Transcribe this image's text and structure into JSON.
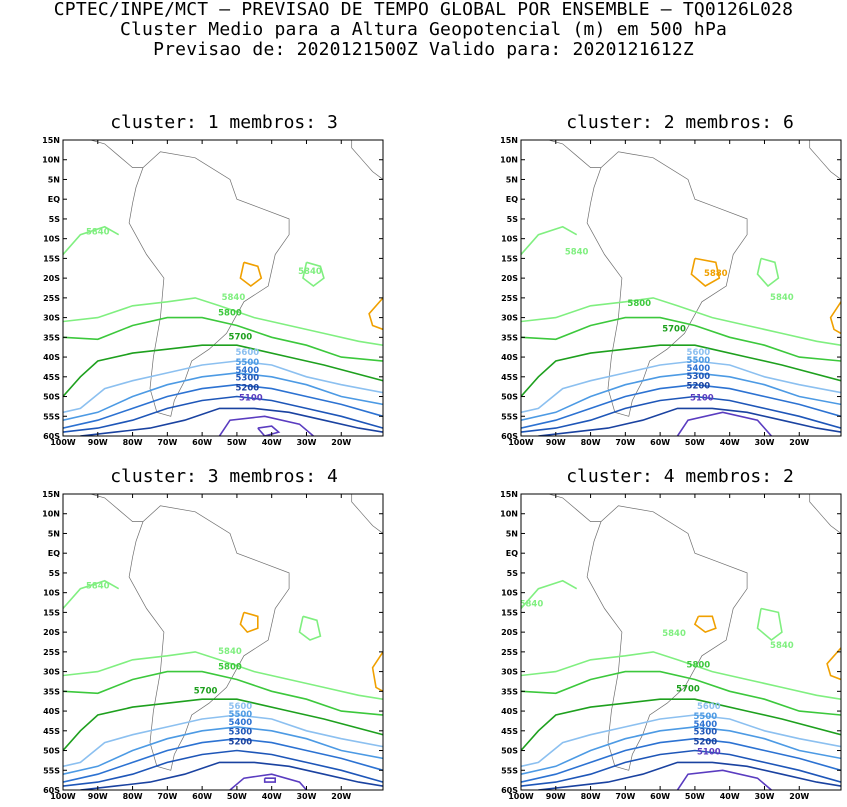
{
  "header": {
    "line1": "CPTEC/INPE/MCT – PREVISAO DE TEMPO GLOBAL POR ENSEMBLE – TQ0126L028",
    "line2": "Cluster Medio para a Altura Geopotencial (m) em 500 hPa",
    "line3": "Previsao de: 2020121500Z    Valido para: 2020121612Z"
  },
  "axes": {
    "lat_ticks": [
      "15N",
      "10N",
      "5N",
      "EQ",
      "5S",
      "10S",
      "15S",
      "20S",
      "25S",
      "30S",
      "35S",
      "40S",
      "45S",
      "50S",
      "55S",
      "60S"
    ],
    "lon_ticks": [
      "100W",
      "90W",
      "80W",
      "70W",
      "60W",
      "50W",
      "40W",
      "30W",
      "20W"
    ]
  },
  "contour_colors": {
    "5840": "#80ef80",
    "5800": "#3cc83c",
    "5700": "#1ea01e",
    "5600": "#8cc0f0",
    "5500": "#4c9ae4",
    "5400": "#2c72d2",
    "5300": "#1e56b8",
    "5200": "#1a42a0",
    "5100": "#5a3cc0",
    "5880": "#f0a000",
    "5900": "#e05000"
  },
  "panels": [
    {
      "title": "cluster: 1   membros: 3",
      "labels": [
        "5840",
        "5840",
        "5840",
        "5800",
        "5700",
        "5600",
        "5500",
        "5400",
        "5300",
        "5200",
        "5100"
      ]
    },
    {
      "title": "cluster: 2   membros: 6",
      "labels": [
        "5840",
        "5840",
        "5880",
        "5800",
        "5700",
        "5600",
        "5500",
        "5400",
        "5300",
        "5200",
        "5100"
      ]
    },
    {
      "title": "cluster: 3   membros: 4",
      "labels": [
        "5840",
        "5840",
        "5800",
        "5700",
        "5600",
        "5500",
        "5400",
        "5300",
        "5200"
      ]
    },
    {
      "title": "cluster: 4   membros: 2",
      "labels": [
        "5840",
        "5840",
        "5840",
        "5800",
        "5700",
        "5600",
        "5500",
        "5400",
        "5300",
        "5200",
        "5100"
      ]
    }
  ]
}
